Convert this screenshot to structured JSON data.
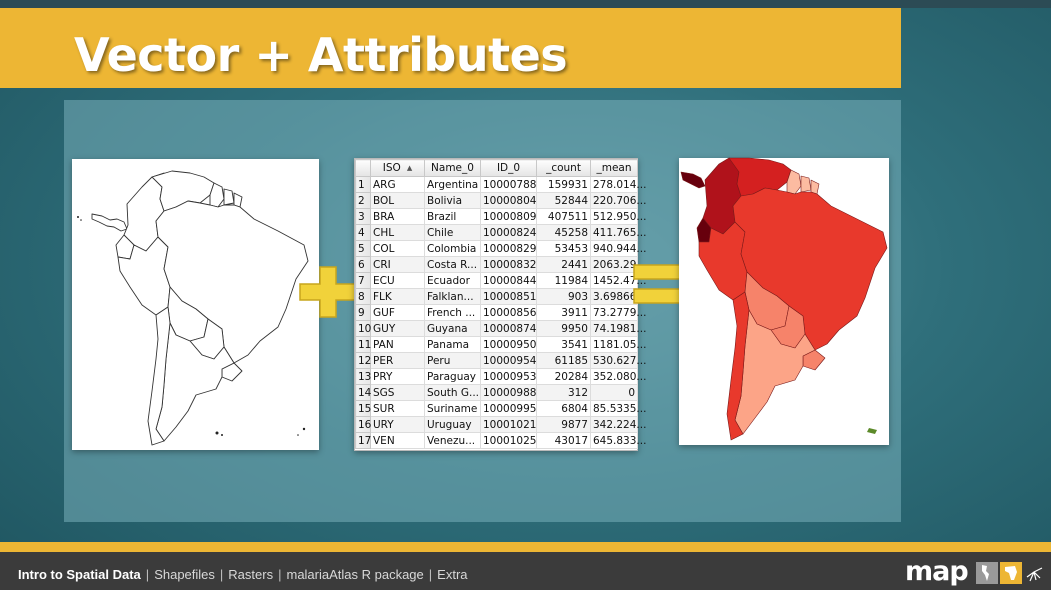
{
  "slide": {
    "title": "Vector + Attributes"
  },
  "colors": {
    "accent": "#edb634",
    "background": "#2f6f7b",
    "footer": "#3b3b3b"
  },
  "table": {
    "columns": [
      "ISO",
      "Name_0",
      "ID_0",
      "_count",
      "_mean"
    ],
    "sorted_column": "ISO",
    "rows": [
      [
        "1",
        "ARG",
        "Argentina",
        "10000788",
        "159931",
        "278.014..."
      ],
      [
        "2",
        "BOL",
        "Bolivia",
        "10000804",
        "52844",
        "220.706..."
      ],
      [
        "3",
        "BRA",
        "Brazil",
        "10000809",
        "407511",
        "512.950..."
      ],
      [
        "4",
        "CHL",
        "Chile",
        "10000824",
        "45258",
        "411.765..."
      ],
      [
        "5",
        "COL",
        "Colombia",
        "10000829",
        "53453",
        "940.944..."
      ],
      [
        "6",
        "CRI",
        "Costa R...",
        "10000832",
        "2441",
        "2063.29..."
      ],
      [
        "7",
        "ECU",
        "Ecuador",
        "10000844",
        "11984",
        "1452.47..."
      ],
      [
        "8",
        "FLK",
        "Falklan...",
        "10000851",
        "903",
        "3.69866..."
      ],
      [
        "9",
        "GUF",
        "French ...",
        "10000856",
        "3911",
        "73.2779..."
      ],
      [
        "10",
        "GUY",
        "Guyana",
        "10000874",
        "9950",
        "74.1981..."
      ],
      [
        "11",
        "PAN",
        "Panama",
        "10000950",
        "3541",
        "1181.05..."
      ],
      [
        "12",
        "PER",
        "Peru",
        "10000954",
        "61185",
        "530.627..."
      ],
      [
        "13",
        "PRY",
        "Paraguay",
        "10000953",
        "20284",
        "352.080..."
      ],
      [
        "14",
        "SGS",
        "South G...",
        "10000988",
        "312",
        "0"
      ],
      [
        "15",
        "SUR",
        "Suriname",
        "10000995",
        "6804",
        "85.5335..."
      ],
      [
        "16",
        "URY",
        "Uruguay",
        "10001021",
        "9877",
        "342.224..."
      ],
      [
        "17",
        "VEN",
        "Venezu...",
        "10001025",
        "43017",
        "645.833..."
      ]
    ]
  },
  "icons": {
    "plus": "plus-icon",
    "equals": "equals-icon"
  },
  "footer": {
    "active_item": "Intro to Spatial Data",
    "items": [
      "Shapefiles",
      "Rasters",
      "malariaAtlas R package",
      "Extra"
    ],
    "separators": [
      "|",
      "|",
      "|",
      "|"
    ],
    "logo_text": "map"
  }
}
